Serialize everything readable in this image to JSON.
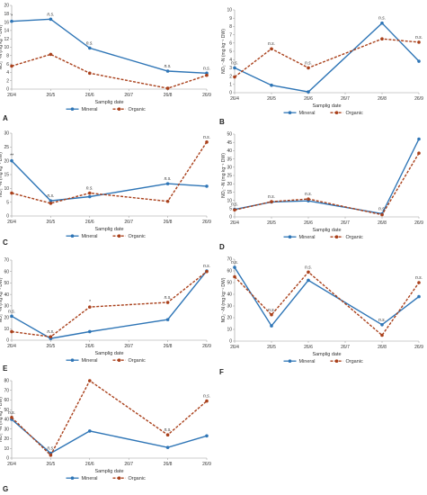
{
  "colors": {
    "mineral": "#2e75b6",
    "organic": "#a9401b"
  },
  "chart_data": [
    {
      "type": "line",
      "panel_label": "A",
      "x": [
        "26/4",
        "26/5",
        "26/6",
        "26/7",
        "26/8",
        "26/9"
      ],
      "xlabel": "Samplig date",
      "ylabel": "NO₂⁻-N (mg kg⁻¹ DW)",
      "ylim": [
        0,
        20
      ],
      "yticks": [
        0,
        2,
        4,
        6,
        8,
        10,
        12,
        14,
        16,
        18,
        20
      ],
      "series": [
        {
          "name": "Mineral",
          "values": [
            16.2,
            16.7,
            9.8,
            null,
            4.3,
            3.8
          ]
        },
        {
          "name": "Organic",
          "values": [
            5.5,
            8.3,
            3.8,
            null,
            0.2,
            3.3
          ]
        }
      ],
      "annotations": [
        "*",
        "n.s.",
        "n.s.",
        "",
        "n.s.",
        "n.s."
      ]
    },
    {
      "type": "line",
      "panel_label": "B",
      "x": [
        "26/4",
        "26/5",
        "26/6",
        "26/7",
        "26/8",
        "26/9"
      ],
      "xlabel": "Samplig date",
      "ylabel": "NO₂⁻-N (mg kg⁻¹ DW)",
      "ylim": [
        0,
        10
      ],
      "yticks": [
        0,
        1,
        2,
        3,
        4,
        5,
        6,
        7,
        8,
        9,
        10
      ],
      "series": [
        {
          "name": "Mineral",
          "values": [
            3.0,
            0.9,
            0.1,
            null,
            8.4,
            3.8
          ]
        },
        {
          "name": "Organic",
          "values": [
            1.9,
            5.3,
            3.0,
            null,
            6.5,
            6.1
          ]
        }
      ],
      "annotations": [
        "n.s.",
        "n.s.",
        "n.s.",
        "",
        "n.s.",
        "n.s."
      ]
    },
    {
      "type": "line",
      "panel_label": "C",
      "x": [
        "26/4",
        "26/5",
        "26/6",
        "26/7",
        "26/8",
        "26/9"
      ],
      "xlabel": "Samplig date",
      "ylabel": "NO₂⁻-N (mg kg⁻¹ DW)",
      "ylim": [
        0,
        30
      ],
      "yticks": [
        0,
        5,
        10,
        15,
        20,
        25,
        30
      ],
      "series": [
        {
          "name": "Mineral",
          "values": [
            20.0,
            5.5,
            7.0,
            null,
            11.7,
            10.8
          ]
        },
        {
          "name": "Organic",
          "values": [
            8.3,
            4.6,
            8.3,
            null,
            5.3,
            26.8
          ]
        }
      ],
      "annotations": [
        "**",
        "n.s.",
        "n.s.",
        "",
        "n.s.",
        "n.s."
      ]
    },
    {
      "type": "line",
      "panel_label": "D",
      "x": [
        "26/4",
        "26/5",
        "26/6",
        "26/7",
        "26/8",
        "26/9"
      ],
      "xlabel": "Samplig date",
      "ylabel": "NO₂⁻-N (mg kg⁻¹ DW)",
      "ylim": [
        0,
        50
      ],
      "yticks": [
        0,
        5,
        10,
        15,
        20,
        25,
        30,
        35,
        40,
        45,
        50
      ],
      "series": [
        {
          "name": "Mineral",
          "values": [
            4.5,
            9.0,
            9.7,
            null,
            1.9,
            47.0
          ]
        },
        {
          "name": "Organic",
          "values": [
            4.2,
            9.2,
            10.8,
            null,
            1.3,
            38.5
          ]
        }
      ],
      "annotations": [
        "n.s.",
        "n.s.",
        "n.s.",
        "",
        "n.s.",
        ""
      ]
    },
    {
      "type": "line",
      "panel_label": "E",
      "x": [
        "26/4",
        "26/5",
        "26/6",
        "26/7",
        "26/8",
        "26/9"
      ],
      "xlabel": "Samplig date",
      "ylabel": "NO₂⁻-N (mg kg⁻¹ DW)",
      "ylim": [
        0,
        70
      ],
      "yticks": [
        0,
        10,
        20,
        30,
        40,
        50,
        60,
        70
      ],
      "series": [
        {
          "name": "Mineral",
          "values": [
            21.0,
            1.5,
            7.5,
            null,
            18.0,
            60.5
          ]
        },
        {
          "name": "Organic",
          "values": [
            7.5,
            3.0,
            29.0,
            null,
            33.0,
            60.0
          ]
        }
      ],
      "annotations": [
        "n.s.",
        "n.s.",
        "*",
        "",
        "n.s.",
        "n.s."
      ]
    },
    {
      "type": "line",
      "panel_label": "F",
      "x": [
        "26/4",
        "26/5",
        "26/6",
        "26/7",
        "26/8",
        "26/9"
      ],
      "xlabel": "Samplig date",
      "ylabel": "NO₂⁻-N (mg kg⁻¹ DW)",
      "ylim": [
        0,
        70
      ],
      "yticks": [
        0,
        10,
        20,
        30,
        40,
        50,
        60,
        70
      ],
      "series": [
        {
          "name": "Mineral",
          "values": [
            63.0,
            13.0,
            52.0,
            null,
            14.0,
            38.0
          ]
        },
        {
          "name": "Organic",
          "values": [
            55.0,
            22.5,
            59.0,
            null,
            5.0,
            50.0
          ]
        }
      ],
      "annotations": [
        "n.s.",
        "n.s.",
        "n.s.",
        "",
        "n.s.",
        "n.s."
      ]
    },
    {
      "type": "line",
      "panel_label": "G",
      "x": [
        "26/4",
        "26/5",
        "26/6",
        "26/7",
        "26/8",
        "26/9"
      ],
      "xlabel": "Samplig date",
      "ylabel": "NO₂⁻-N (mg kg⁻¹ DW)",
      "ylim": [
        0,
        80
      ],
      "yticks": [
        0,
        10,
        20,
        30,
        40,
        50,
        60,
        70,
        80
      ],
      "series": [
        {
          "name": "Mineral",
          "values": [
            40.0,
            5.0,
            28.0,
            null,
            11.0,
            23.0
          ]
        },
        {
          "name": "Organic",
          "values": [
            42.0,
            3.0,
            80.0,
            null,
            24.0,
            59.0
          ]
        }
      ],
      "annotations": [
        "n.s.",
        "n.s.",
        "",
        "",
        "n.s.",
        "n.s."
      ]
    }
  ]
}
